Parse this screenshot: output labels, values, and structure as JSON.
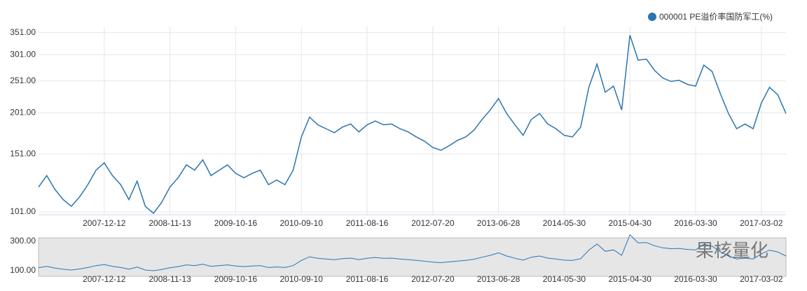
{
  "chart_data": [
    {
      "type": "line",
      "log_scale": true,
      "grid": true,
      "legend": "top-right",
      "watermark": "果核量化",
      "categories": [
        null,
        null,
        null,
        null,
        null,
        null,
        null,
        null,
        "2007-12-12",
        null,
        null,
        null,
        null,
        null,
        null,
        null,
        "2008-11-13",
        null,
        null,
        null,
        null,
        null,
        null,
        null,
        "2009-10-16",
        null,
        null,
        null,
        null,
        null,
        null,
        null,
        "2010-09-10",
        null,
        null,
        null,
        null,
        null,
        null,
        null,
        "2011-08-16",
        null,
        null,
        null,
        null,
        null,
        null,
        null,
        "2012-07-20",
        null,
        null,
        null,
        null,
        null,
        null,
        null,
        "2013-06-28",
        null,
        null,
        null,
        null,
        null,
        null,
        null,
        "2014-05-30",
        null,
        null,
        null,
        null,
        null,
        null,
        null,
        "2015-04-30",
        null,
        null,
        null,
        null,
        null,
        null,
        null,
        "2016-03-30",
        null,
        null,
        null,
        null,
        null,
        null,
        null,
        "2017-03-02",
        null,
        null,
        null
      ],
      "series": [
        {
          "name": "000001 PE溢价率国防军工(%)",
          "color": "#2b75b0",
          "values": [
            120,
            130,
            118,
            110,
            105,
            112,
            122,
            135,
            142,
            130,
            122,
            110,
            125,
            105,
            100,
            108,
            120,
            128,
            140,
            135,
            145,
            130,
            135,
            140,
            132,
            128,
            132,
            135,
            122,
            126,
            122,
            135,
            170,
            195,
            185,
            180,
            175,
            182,
            186,
            176,
            185,
            190,
            185,
            186,
            180,
            176,
            170,
            165,
            158,
            155,
            160,
            166,
            170,
            178,
            192,
            205,
            222,
            200,
            185,
            172,
            192,
            200,
            186,
            180,
            172,
            170,
            182,
            240,
            282,
            232,
            242,
            205,
            345,
            290,
            292,
            270,
            256,
            250,
            252,
            245,
            242,
            280,
            268,
            230,
            200,
            180,
            186,
            180,
            215,
            240,
            228,
            200
          ]
        }
      ],
      "ylim": [
        99,
        366
      ],
      "yticks": [
        {
          "value": 101,
          "label": "101.00"
        },
        {
          "value": 151,
          "label": "151.00"
        },
        {
          "value": 201,
          "label": "201.00"
        },
        {
          "value": 251,
          "label": "251.00"
        },
        {
          "value": 301,
          "label": "301.00"
        },
        {
          "value": 351,
          "label": "351.00"
        }
      ]
    },
    {
      "type": "navigator",
      "ylim": [
        62,
        324
      ],
      "yticks": [
        {
          "value": 100,
          "label": "100.00"
        },
        {
          "value": 300,
          "label": "300.00"
        }
      ]
    }
  ]
}
